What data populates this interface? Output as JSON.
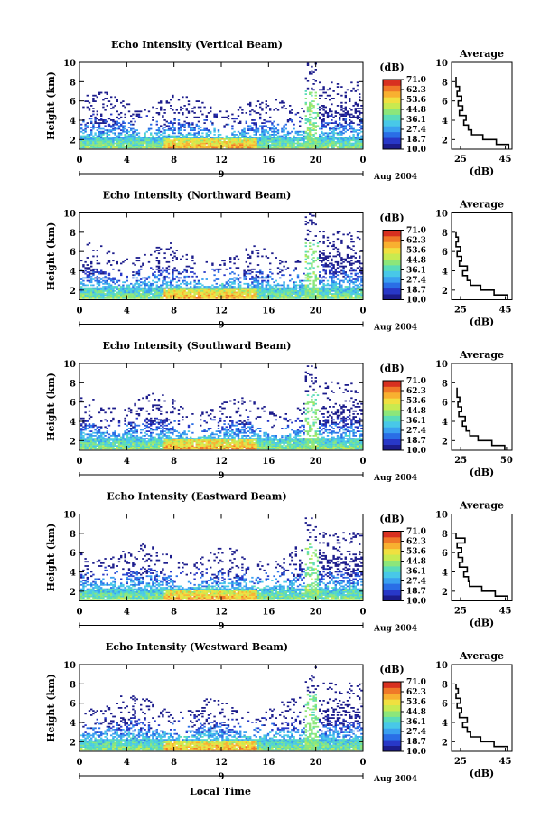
{
  "chart_data": {
    "type": "heatmap",
    "xlabel": "Local Time",
    "date_label": "Aug 2004",
    "day_label": "9",
    "x_ticks": [
      "0",
      "4",
      "8",
      "12",
      "16",
      "20",
      "0"
    ],
    "xlim": [
      0,
      24
    ],
    "y_ticks": [
      "2",
      "4",
      "6",
      "8",
      "10"
    ],
    "ylim": [
      1,
      10
    ],
    "ylabel": "Height (km)",
    "colorbar": {
      "unit": "(dB)",
      "ticks": [
        "71.0",
        "62.3",
        "53.6",
        "44.8",
        "36.1",
        "27.4",
        "18.7",
        "10.0"
      ],
      "range": [
        10.0,
        71.0
      ],
      "colors": [
        "#1c1c8c",
        "#2838c8",
        "#2a6ee6",
        "#3aa0f0",
        "#48c8e8",
        "#5adcb8",
        "#8ce67a",
        "#c8ea50",
        "#f0e040",
        "#f8b030",
        "#f07828",
        "#d83020"
      ]
    },
    "profile_title": "Average",
    "profile_xlabel": "(dB)",
    "panels": [
      {
        "title": "Echo Intensity (Vertical Beam)",
        "profile_xticks": [
          25,
          45
        ],
        "profile_xlim": [
          21,
          48
        ],
        "profile": {
          "height": [
            1.0,
            1.5,
            2.0,
            2.5,
            3.0,
            3.5,
            4.0,
            4.5,
            5.0,
            5.5,
            6.0,
            6.5,
            7.0,
            7.5,
            8.0
          ],
          "value": [
            46.5,
            41.0,
            35.0,
            30.0,
            28.5,
            26.5,
            27.5,
            24.5,
            26.0,
            24.0,
            25.5,
            23.5,
            24.5,
            23.0,
            23.0
          ]
        }
      },
      {
        "title": "Echo Intensity (Northward Beam)",
        "profile_xticks": [
          25,
          45
        ],
        "profile_xlim": [
          21,
          48
        ],
        "profile": {
          "height": [
            1.0,
            1.5,
            2.0,
            2.5,
            3.0,
            3.5,
            4.0,
            4.5,
            5.0,
            5.5,
            6.0,
            6.5,
            7.0,
            7.5
          ],
          "value": [
            46.0,
            40.0,
            34.0,
            29.5,
            28.0,
            26.0,
            28.0,
            24.5,
            25.5,
            23.5,
            25.0,
            23.0,
            24.0,
            23.0
          ]
        }
      },
      {
        "title": "Echo Intensity (Southward Beam)",
        "profile_xticks": [
          25,
          50
        ],
        "profile_xlim": [
          20,
          53
        ],
        "profile": {
          "height": [
            1.0,
            1.5,
            2.0,
            2.5,
            3.0,
            3.5,
            4.0,
            4.5,
            5.0,
            5.5,
            6.0,
            6.5,
            7.0
          ],
          "value": [
            49.0,
            42.0,
            34.5,
            30.0,
            28.0,
            26.0,
            27.5,
            24.0,
            25.5,
            23.5,
            24.5,
            23.0,
            23.0
          ]
        }
      },
      {
        "title": "Echo Intensity (Eastward Beam)",
        "profile_xticks": [
          25,
          45
        ],
        "profile_xlim": [
          21,
          48
        ],
        "profile": {
          "height": [
            1.0,
            1.5,
            2.0,
            2.5,
            3.0,
            3.5,
            4.0,
            4.5,
            5.0,
            5.5,
            6.0,
            6.5,
            7.0,
            7.5
          ],
          "value": [
            46.0,
            40.5,
            34.5,
            29.0,
            28.5,
            26.5,
            28.0,
            24.5,
            26.0,
            24.0,
            25.5,
            23.5,
            27.0,
            23.0
          ]
        }
      },
      {
        "title": "Echo Intensity (Westward Beam)",
        "profile_xticks": [
          25,
          45
        ],
        "profile_xlim": [
          21,
          48
        ],
        "profile": {
          "height": [
            1.0,
            1.5,
            2.0,
            2.5,
            3.0,
            3.5,
            4.0,
            4.5,
            5.0,
            5.5,
            6.0,
            6.5,
            7.0,
            7.5
          ],
          "value": [
            46.0,
            40.0,
            34.0,
            29.5,
            28.0,
            26.0,
            28.0,
            24.5,
            25.5,
            23.5,
            25.0,
            23.0,
            24.0,
            23.0
          ]
        }
      }
    ]
  }
}
